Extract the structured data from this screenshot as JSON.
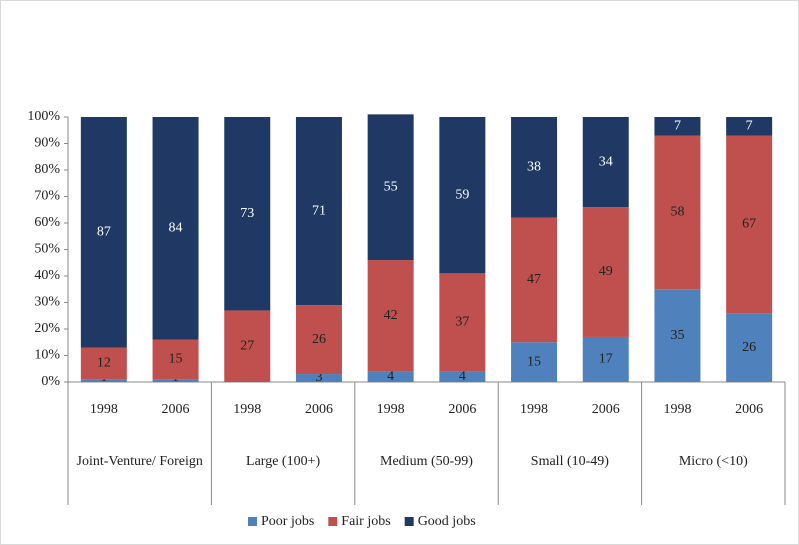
{
  "chart_data": {
    "type": "stacked_bar",
    "categories": [
      "1998",
      "2006",
      "1998",
      "2006",
      "1998",
      "2006",
      "1998",
      "2006",
      "1998",
      "2006"
    ],
    "groups": [
      "Joint-Venture/ Foreign",
      "Large (100+)",
      "Medium (50-99)",
      "Small (10-49)",
      "Micro (<10)"
    ],
    "series": [
      {
        "name": "Poor jobs",
        "color": "#4f81bd",
        "values": [
          1,
          1,
          0,
          3,
          4,
          4,
          15,
          17,
          35,
          26
        ]
      },
      {
        "name": "Fair jobs",
        "color": "#c0504d",
        "values": [
          12,
          15,
          27,
          26,
          42,
          37,
          47,
          49,
          58,
          67
        ]
      },
      {
        "name": "Good jobs",
        "color": "#1f3864",
        "values": [
          87,
          84,
          73,
          71,
          55,
          59,
          38,
          34,
          7,
          7
        ]
      }
    ],
    "ylim": [
      0,
      100
    ],
    "yticks": [
      {
        "value": 0,
        "label": "0%"
      },
      {
        "value": 10,
        "label": "10%"
      },
      {
        "value": 20,
        "label": "20%"
      },
      {
        "value": 30,
        "label": "30%"
      },
      {
        "value": 40,
        "label": "40%"
      },
      {
        "value": 50,
        "label": "50%"
      },
      {
        "value": 60,
        "label": "60%"
      },
      {
        "value": 70,
        "label": "70%"
      },
      {
        "value": 80,
        "label": "80%"
      },
      {
        "value": 90,
        "label": "90%"
      },
      {
        "value": 100,
        "label": "100%"
      }
    ],
    "legend": "bottom"
  }
}
